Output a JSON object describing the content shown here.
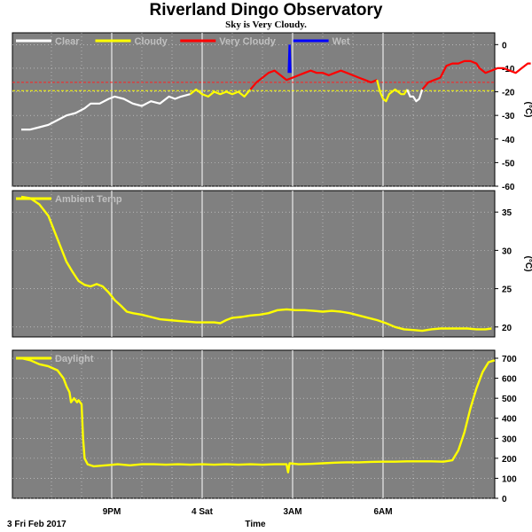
{
  "title": "Riverland Dingo Observatory",
  "subtitle": "Sky is Very Cloudy.",
  "colors": {
    "panel_bg": "#808080",
    "grid": "#ffffff",
    "clear": "#ffffff",
    "cloudy": "#ffff00",
    "very_cloudy": "#ff0000",
    "wet": "#0000ff",
    "threshold_red": "#ff2020",
    "threshold_yellow": "#ffff00"
  },
  "bottom": {
    "date_label": "3 Fri Feb 2017",
    "axis_title": "Time"
  },
  "chart_data": [
    {
      "type": "line",
      "name": "sky",
      "legend": [
        "Clear",
        "Cloudy",
        "Very Cloudy",
        "Wet"
      ],
      "ylabel": "(°C)",
      "ylim": [
        -60,
        5
      ],
      "yticks": [
        0,
        -10,
        -20,
        -30,
        -40,
        -50,
        -60
      ],
      "thresholds": [
        {
          "value": -16,
          "color": "red"
        },
        {
          "value": -19.5,
          "color": "yellow"
        }
      ],
      "x_range_hours": [
        18.0,
        7.6
      ],
      "segments": [
        {
          "state": "clear",
          "points": [
            [
              18.0,
              -36
            ],
            [
              18.3,
              -36
            ],
            [
              18.6,
              -35
            ],
            [
              18.9,
              -34
            ],
            [
              19.2,
              -32
            ],
            [
              19.5,
              -30
            ],
            [
              19.8,
              -29
            ],
            [
              20.1,
              -27
            ],
            [
              20.3,
              -25
            ],
            [
              20.6,
              -25
            ],
            [
              20.9,
              -23
            ],
            [
              21.1,
              -22
            ],
            [
              21.4,
              -23
            ],
            [
              21.7,
              -25
            ],
            [
              22.0,
              -26
            ],
            [
              22.3,
              -24
            ],
            [
              22.6,
              -25
            ],
            [
              22.9,
              -22
            ],
            [
              23.1,
              -23
            ],
            [
              23.3,
              -22
            ],
            [
              23.6,
              -21
            ]
          ]
        },
        {
          "state": "cloudy",
          "points": [
            [
              23.6,
              -21
            ],
            [
              23.8,
              -19
            ],
            [
              24.0,
              -21
            ],
            [
              24.2,
              -22
            ],
            [
              24.4,
              -20
            ],
            [
              24.6,
              -21
            ],
            [
              24.8,
              -20
            ],
            [
              25.0,
              -21
            ],
            [
              25.2,
              -20
            ],
            [
              25.4,
              -22
            ],
            [
              25.6,
              -19
            ]
          ]
        },
        {
          "state": "very_cloudy",
          "points": [
            [
              25.6,
              -19
            ],
            [
              25.8,
              -16
            ],
            [
              26.0,
              -14
            ],
            [
              26.2,
              -12
            ],
            [
              26.4,
              -11
            ],
            [
              26.6,
              -13
            ],
            [
              26.8,
              -15
            ],
            [
              27.0,
              -14
            ],
            [
              27.2,
              -13
            ],
            [
              27.4,
              -12
            ],
            [
              27.6,
              -11
            ],
            [
              27.8,
              -12
            ],
            [
              28.0,
              -12
            ],
            [
              28.2,
              -13
            ],
            [
              28.4,
              -12
            ],
            [
              28.6,
              -11
            ],
            [
              28.8,
              -12
            ],
            [
              29.0,
              -13
            ],
            [
              29.2,
              -14
            ],
            [
              29.4,
              -15
            ],
            [
              29.6,
              -16
            ],
            [
              29.8,
              -15
            ]
          ]
        },
        {
          "state": "cloudy",
          "points": [
            [
              29.8,
              -15
            ],
            [
              29.9,
              -20
            ],
            [
              30.0,
              -23
            ],
            [
              30.1,
              -24
            ],
            [
              30.2,
              -21
            ],
            [
              30.3,
              -20
            ],
            [
              30.4,
              -19
            ],
            [
              30.5,
              -20
            ],
            [
              30.6,
              -21
            ],
            [
              30.7,
              -21
            ],
            [
              30.8,
              -19
            ]
          ]
        },
        {
          "state": "clear",
          "points": [
            [
              30.8,
              -19
            ],
            [
              30.9,
              -22
            ],
            [
              31.0,
              -22
            ],
            [
              31.1,
              -24
            ],
            [
              31.2,
              -23
            ],
            [
              31.3,
              -19
            ]
          ]
        },
        {
          "state": "very_cloudy",
          "points": [
            [
              31.3,
              -19
            ],
            [
              31.5,
              -16
            ],
            [
              31.7,
              -15
            ],
            [
              31.9,
              -14
            ],
            [
              32.1,
              -9
            ],
            [
              32.3,
              -8
            ],
            [
              32.5,
              -8
            ],
            [
              32.7,
              -7
            ],
            [
              32.9,
              -7
            ],
            [
              33.1,
              -8
            ],
            [
              33.2,
              -10
            ],
            [
              33.4,
              -12
            ],
            [
              33.6,
              -11
            ],
            [
              33.8,
              -10
            ],
            [
              34.0,
              -10
            ],
            [
              34.2,
              -11
            ],
            [
              34.4,
              -12
            ],
            [
              34.6,
              -10
            ],
            [
              34.8,
              -8
            ],
            [
              34.9,
              -8
            ]
          ]
        }
      ],
      "wet_spike": {
        "x": 26.9,
        "y": 0
      }
    },
    {
      "type": "line",
      "name": "ambient",
      "legend": [
        "Ambient Temp"
      ],
      "ylabel": "(°C)",
      "ylim": [
        18.7,
        37.8
      ],
      "yticks": [
        35,
        30,
        25,
        20
      ],
      "points": [
        [
          18.0,
          37.0
        ],
        [
          18.3,
          36.8
        ],
        [
          18.6,
          36.0
        ],
        [
          18.9,
          34.5
        ],
        [
          19.1,
          32.5
        ],
        [
          19.3,
          30.5
        ],
        [
          19.5,
          28.5
        ],
        [
          19.7,
          27.2
        ],
        [
          19.9,
          26.0
        ],
        [
          20.1,
          25.5
        ],
        [
          20.3,
          25.3
        ],
        [
          20.5,
          25.6
        ],
        [
          20.7,
          25.3
        ],
        [
          20.9,
          24.5
        ],
        [
          21.1,
          23.5
        ],
        [
          21.3,
          22.8
        ],
        [
          21.5,
          22.0
        ],
        [
          21.7,
          21.8
        ],
        [
          22.0,
          21.6
        ],
        [
          22.3,
          21.3
        ],
        [
          22.6,
          21.0
        ],
        [
          22.9,
          20.9
        ],
        [
          23.2,
          20.8
        ],
        [
          23.5,
          20.7
        ],
        [
          23.8,
          20.6
        ],
        [
          24.1,
          20.6
        ],
        [
          24.4,
          20.6
        ],
        [
          24.6,
          20.5
        ],
        [
          24.8,
          20.9
        ],
        [
          25.0,
          21.2
        ],
        [
          25.3,
          21.3
        ],
        [
          25.6,
          21.5
        ],
        [
          25.9,
          21.6
        ],
        [
          26.2,
          21.8
        ],
        [
          26.5,
          22.2
        ],
        [
          26.8,
          22.3
        ],
        [
          27.1,
          22.2
        ],
        [
          27.4,
          22.2
        ],
        [
          27.7,
          22.1
        ],
        [
          28.0,
          22.0
        ],
        [
          28.3,
          22.1
        ],
        [
          28.6,
          22.0
        ],
        [
          28.9,
          21.8
        ],
        [
          29.2,
          21.5
        ],
        [
          29.5,
          21.2
        ],
        [
          29.8,
          20.9
        ],
        [
          30.1,
          20.5
        ],
        [
          30.4,
          20.0
        ],
        [
          30.7,
          19.7
        ],
        [
          31.0,
          19.6
        ],
        [
          31.3,
          19.5
        ],
        [
          31.6,
          19.7
        ],
        [
          31.9,
          19.8
        ],
        [
          32.2,
          19.8
        ],
        [
          32.5,
          19.8
        ],
        [
          32.8,
          19.8
        ],
        [
          33.1,
          19.7
        ],
        [
          33.4,
          19.7
        ],
        [
          33.6,
          19.8
        ]
      ]
    },
    {
      "type": "line",
      "name": "daylight",
      "legend": [
        "Daylight"
      ],
      "ylabel": "",
      "ylim": [
        0,
        740
      ],
      "yticks": [
        700,
        600,
        500,
        400,
        300,
        200,
        100,
        0
      ],
      "points": [
        [
          18.0,
          700
        ],
        [
          18.3,
          690
        ],
        [
          18.6,
          670
        ],
        [
          18.9,
          660
        ],
        [
          19.2,
          640
        ],
        [
          19.4,
          600
        ],
        [
          19.5,
          560
        ],
        [
          19.6,
          530
        ],
        [
          19.65,
          480
        ],
        [
          19.75,
          500
        ],
        [
          19.85,
          480
        ],
        [
          19.9,
          490
        ],
        [
          20.0,
          470
        ],
        [
          20.05,
          300
        ],
        [
          20.1,
          200
        ],
        [
          20.2,
          170
        ],
        [
          20.4,
          160
        ],
        [
          20.8,
          165
        ],
        [
          21.2,
          170
        ],
        [
          21.6,
          165
        ],
        [
          22.0,
          170
        ],
        [
          22.4,
          170
        ],
        [
          22.8,
          168
        ],
        [
          23.2,
          170
        ],
        [
          23.6,
          168
        ],
        [
          24.0,
          170
        ],
        [
          24.4,
          168
        ],
        [
          24.8,
          170
        ],
        [
          25.2,
          168
        ],
        [
          25.6,
          170
        ],
        [
          26.0,
          168
        ],
        [
          26.4,
          170
        ],
        [
          26.8,
          170
        ],
        [
          26.85,
          130
        ],
        [
          26.9,
          175
        ],
        [
          27.2,
          170
        ],
        [
          27.6,
          172
        ],
        [
          28.0,
          175
        ],
        [
          28.4,
          178
        ],
        [
          28.8,
          180
        ],
        [
          29.2,
          180
        ],
        [
          29.6,
          182
        ],
        [
          30.0,
          183
        ],
        [
          30.4,
          183
        ],
        [
          30.8,
          185
        ],
        [
          31.2,
          185
        ],
        [
          31.6,
          185
        ],
        [
          32.0,
          183
        ],
        [
          32.3,
          190
        ],
        [
          32.5,
          240
        ],
        [
          32.7,
          330
        ],
        [
          32.9,
          450
        ],
        [
          33.1,
          550
        ],
        [
          33.3,
          630
        ],
        [
          33.5,
          680
        ],
        [
          33.7,
          690
        ]
      ]
    }
  ],
  "x_axis": {
    "ticks": [
      {
        "hour": 21.0,
        "label": "9PM"
      },
      {
        "hour": 24.0,
        "label": "4 Sat"
      },
      {
        "hour": 27.0,
        "label": "3AM"
      },
      {
        "hour": 30.0,
        "label": "6AM"
      }
    ]
  }
}
